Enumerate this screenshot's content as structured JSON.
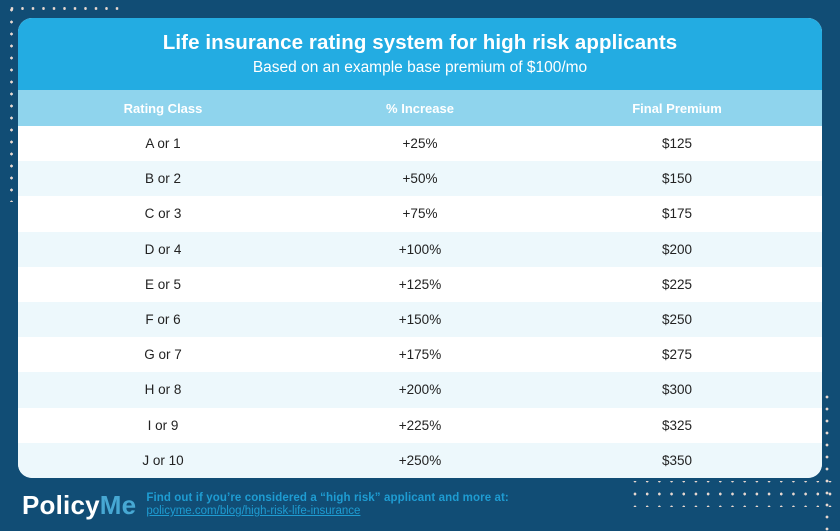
{
  "theme": {
    "bg": "#114D75",
    "header_blue": "#23ACE2",
    "thead_blue": "#8FD4ED",
    "row_alt": "#EDF8FC",
    "footer_cyan": "#1E9CD2",
    "logo_me_blue": "#47A8D3",
    "dot_color": "#E8D8D0"
  },
  "header": {
    "title": "Life insurance rating system for high risk applicants",
    "subtitle": "Based on an example base premium of $100/mo"
  },
  "table": {
    "columns": [
      "Rating Class",
      "% Increase",
      "Final Premium"
    ],
    "rows": [
      {
        "rating_class": "A or 1",
        "increase": "+25%",
        "final_premium": "$125"
      },
      {
        "rating_class": "B or 2",
        "increase": "+50%",
        "final_premium": "$150"
      },
      {
        "rating_class": "C or 3",
        "increase": "+75%",
        "final_premium": "$175"
      },
      {
        "rating_class": "D or 4",
        "increase": "+100%",
        "final_premium": "$200"
      },
      {
        "rating_class": "E or 5",
        "increase": "+125%",
        "final_premium": "$225"
      },
      {
        "rating_class": "F or 6",
        "increase": "+150%",
        "final_premium": "$250"
      },
      {
        "rating_class": "G or 7",
        "increase": "+175%",
        "final_premium": "$275"
      },
      {
        "rating_class": "H or 8",
        "increase": "+200%",
        "final_premium": "$300"
      },
      {
        "rating_class": "I or 9",
        "increase": "+225%",
        "final_premium": "$325"
      },
      {
        "rating_class": "J or 10",
        "increase": "+250%",
        "final_premium": "$350"
      }
    ]
  },
  "footer": {
    "logo_policy": "Policy",
    "logo_me": "Me",
    "note": "Find out if you’re considered a “high risk” applicant and more at:",
    "link": "policyme.com/blog/high-risk-life-insurance"
  },
  "chart_data": {
    "type": "table",
    "title": "Life insurance rating system for high risk applicants",
    "subtitle": "Based on an example base premium of $100/mo",
    "base_premium_per_month": 100,
    "columns": [
      "Rating Class",
      "% Increase",
      "Final Premium"
    ],
    "rows": [
      [
        "A or 1",
        "+25%",
        "$125"
      ],
      [
        "B or 2",
        "+50%",
        "$150"
      ],
      [
        "C or 3",
        "+75%",
        "$175"
      ],
      [
        "D or 4",
        "+100%",
        "$200"
      ],
      [
        "E or 5",
        "+125%",
        "$225"
      ],
      [
        "F or 6",
        "+150%",
        "$250"
      ],
      [
        "G or 7",
        "+175%",
        "$275"
      ],
      [
        "H or 8",
        "+200%",
        "$300"
      ],
      [
        "I or 9",
        "+225%",
        "$325"
      ],
      [
        "J or 10",
        "+250%",
        "$350"
      ]
    ],
    "increase_percent_values": [
      25,
      50,
      75,
      100,
      125,
      150,
      175,
      200,
      225,
      250
    ],
    "final_premium_values": [
      125,
      150,
      175,
      200,
      225,
      250,
      275,
      300,
      325,
      350
    ]
  }
}
